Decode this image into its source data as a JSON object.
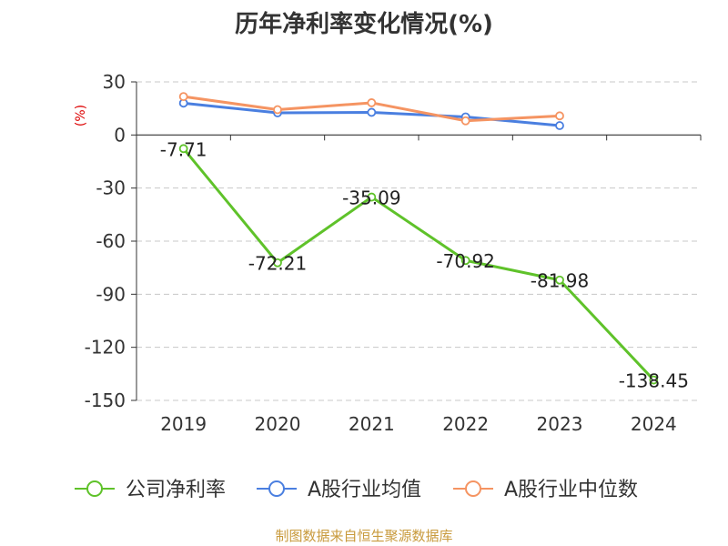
{
  "chart_data": {
    "type": "line",
    "title": "历年净利率变化情况(%)",
    "ylabel": "(%)",
    "categories": [
      "2019",
      "2020",
      "2021",
      "2022",
      "2023",
      "2024"
    ],
    "ylim": [
      -150,
      30
    ],
    "yticks": [
      30,
      0,
      -30,
      -60,
      -90,
      -120,
      -150
    ],
    "grid": true,
    "legend_position": "bottom",
    "series": [
      {
        "name": "公司净利率",
        "color": "#5fc22a",
        "values": [
          -7.71,
          -72.21,
          -35.09,
          -70.92,
          -81.98,
          -138.45
        ],
        "labels": [
          "-7.71",
          "-72.21",
          "-35.09",
          "-70.92",
          "-81.98",
          "-138.45"
        ]
      },
      {
        "name": "A股行业均值",
        "color": "#4a7fe0",
        "values": [
          18.0,
          12.5,
          12.8,
          10.2,
          5.3,
          null
        ]
      },
      {
        "name": "A股行业中位数",
        "color": "#f59462",
        "values": [
          21.7,
          14.3,
          18.2,
          8.0,
          10.8,
          null
        ]
      }
    ]
  },
  "source": "制图数据来自恒生聚源数据库"
}
